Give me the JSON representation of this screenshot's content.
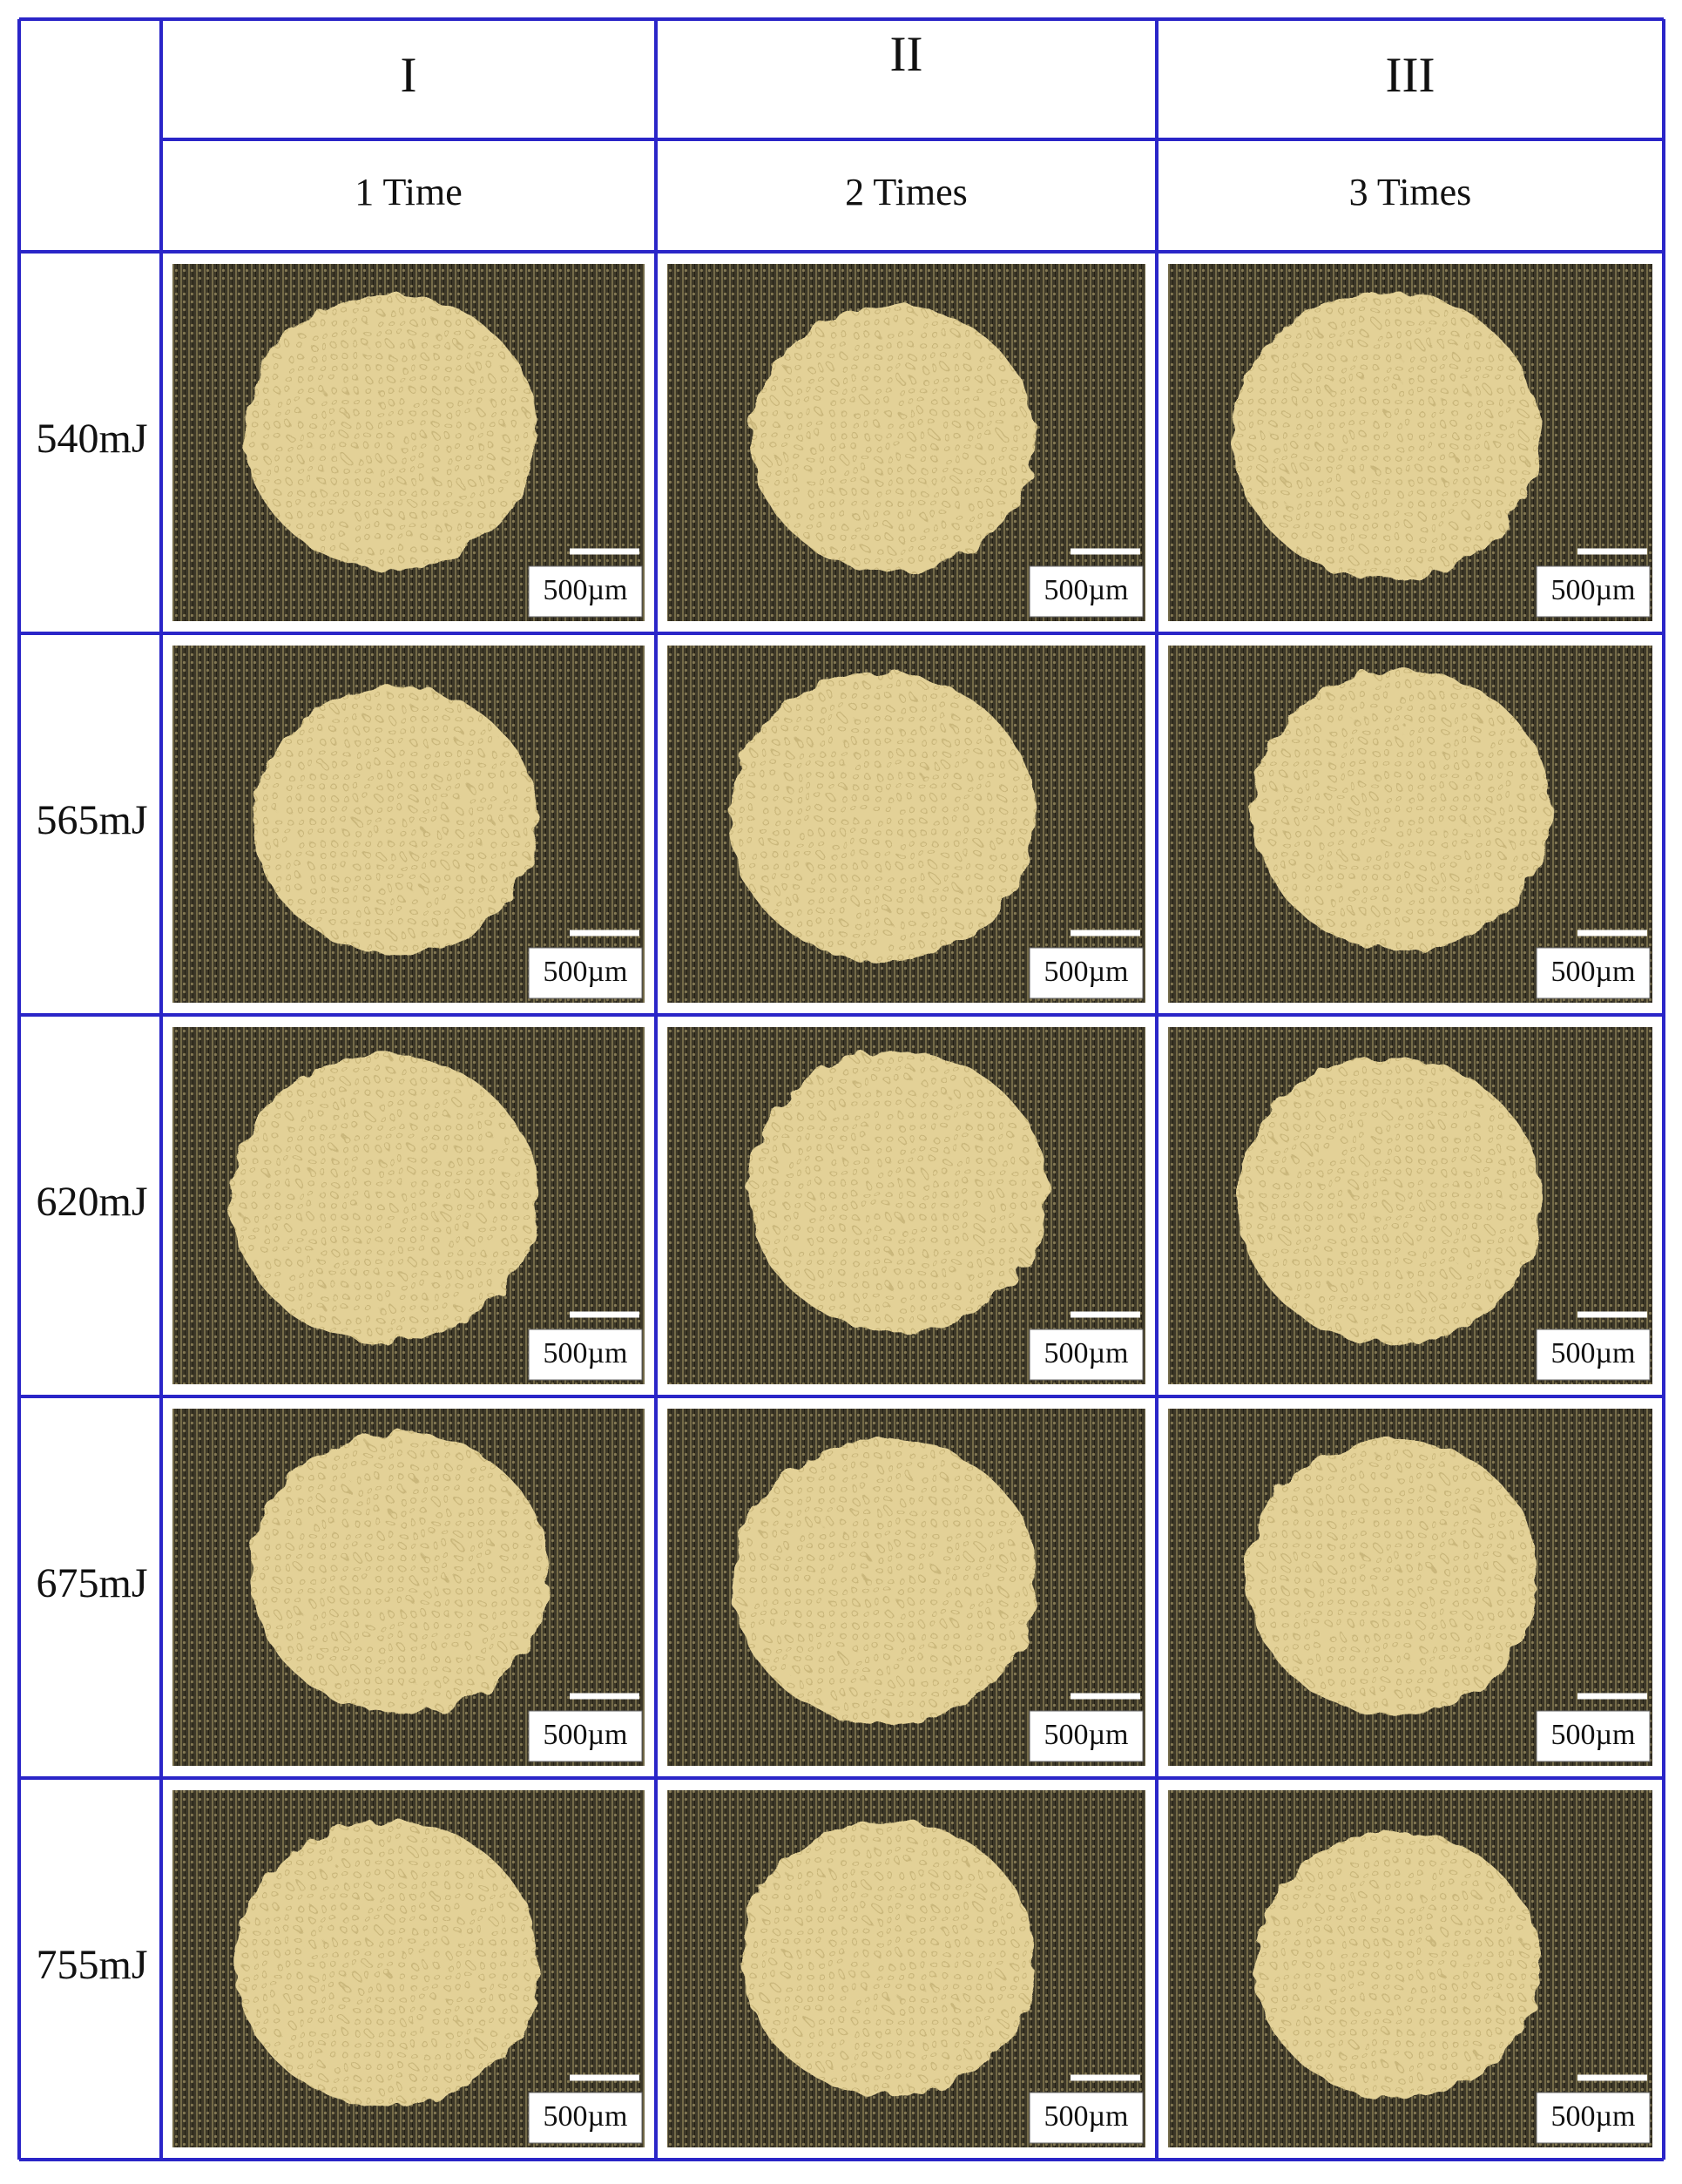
{
  "table": {
    "columns": [
      {
        "numeral": "I",
        "label": "1 Time"
      },
      {
        "numeral": "II",
        "label": "2 Times"
      },
      {
        "numeral": "III",
        "label": "3 Times"
      }
    ],
    "rows": [
      {
        "label": "540mJ",
        "scale_bars": [
          "500µm",
          "500µm",
          "500µm"
        ]
      },
      {
        "label": "565mJ",
        "scale_bars": [
          "500µm",
          "500µm",
          "500µm"
        ]
      },
      {
        "label": "620mJ",
        "scale_bars": [
          "500µm",
          "500µm",
          "500µm"
        ]
      },
      {
        "label": "675mJ",
        "scale_bars": [
          "500µm",
          "500µm",
          "500µm"
        ]
      },
      {
        "label": "755mJ",
        "scale_bars": [
          "500µm",
          "500µm",
          "500µm"
        ]
      }
    ]
  }
}
